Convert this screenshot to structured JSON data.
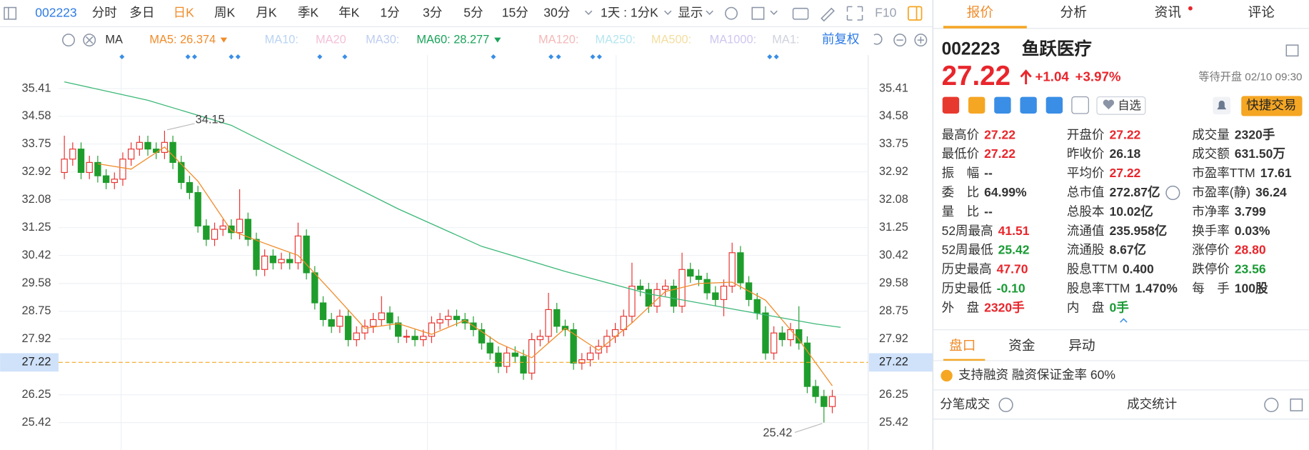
{
  "toolbar": {
    "code": "002223",
    "periods": [
      "分时",
      "多日",
      "日K",
      "周K",
      "月K",
      "季K",
      "年K",
      "1分",
      "3分",
      "5分",
      "15分",
      "30分"
    ],
    "interval": "1天 : 1分K",
    "display": "显示",
    "f10": "F10"
  },
  "ma_legend": {
    "title": "MA",
    "items": [
      "MA5: 26.374",
      "MA10:",
      "MA20",
      "MA30:",
      "MA60: 28.277",
      "MA120:",
      "MA250:",
      "MA500:",
      "MA1000:",
      "MA1:"
    ],
    "adjust": "前复权"
  },
  "chart_data": {
    "type": "candlestick",
    "open": [
      32.9,
      33.3,
      33.6,
      32.9,
      33.2,
      32.8,
      32.6,
      32.7,
      33.3,
      33.6,
      33.8,
      33.6,
      33.5,
      33.8,
      33.2,
      32.6,
      32.3,
      31.3,
      30.9,
      31.2,
      31.3,
      31.1,
      31.5,
      30.9,
      30.0,
      30.4,
      30.2,
      30.3,
      30.2,
      31.0,
      29.9,
      29.0,
      28.5,
      28.3,
      28.6,
      27.9,
      28.1,
      28.3,
      28.5,
      28.7,
      28.4,
      28.0,
      28.0,
      27.9,
      28.0,
      28.4,
      28.5,
      28.6,
      28.5,
      28.4,
      28.2,
      27.8,
      27.5,
      27.1,
      27.5,
      27.4,
      26.9,
      27.9,
      28.0,
      28.8,
      28.3,
      28.2,
      27.2,
      27.3,
      27.5,
      27.7,
      28.0,
      28.2,
      28.6,
      29.5,
      29.4,
      28.9,
      29.4,
      29.5,
      28.9,
      30.0,
      29.8,
      29.7,
      29.3,
      29.1,
      29.5,
      30.5,
      29.6,
      29.1,
      28.7,
      27.5,
      28.1,
      27.9,
      28.2,
      27.8,
      26.5,
      26.2,
      25.9
    ],
    "high": [
      34.0,
      33.8,
      33.8,
      33.4,
      33.4,
      33.0,
      32.9,
      33.5,
      33.8,
      34.0,
      34.0,
      33.8,
      34.15,
      34.0,
      33.4,
      32.8,
      32.5,
      31.5,
      31.4,
      31.5,
      31.5,
      32.4,
      31.7,
      31.1,
      30.6,
      30.6,
      30.5,
      30.5,
      31.4,
      31.2,
      30.1,
      29.2,
      28.7,
      28.8,
      28.8,
      28.3,
      28.5,
      28.7,
      29.2,
      28.9,
      28.6,
      28.2,
      28.2,
      28.2,
      28.6,
      28.7,
      28.8,
      28.8,
      28.7,
      28.6,
      28.4,
      28.0,
      27.7,
      27.7,
      27.7,
      27.6,
      28.1,
      28.2,
      29.3,
      29.0,
      28.5,
      28.4,
      27.5,
      27.7,
      27.9,
      28.2,
      28.4,
      28.8,
      30.2,
      29.7,
      29.6,
      29.6,
      29.7,
      29.7,
      30.5,
      30.2,
      30.0,
      29.9,
      29.5,
      29.7,
      30.8,
      30.7,
      29.8,
      29.3,
      28.9,
      28.3,
      28.3,
      28.4,
      28.9,
      28.0,
      26.7,
      26.4,
      26.4
    ],
    "low": [
      32.7,
      33.1,
      32.7,
      32.7,
      32.6,
      32.4,
      32.4,
      32.5,
      33.1,
      33.4,
      33.4,
      33.3,
      33.3,
      33.0,
      32.4,
      32.1,
      31.1,
      30.7,
      30.7,
      31.0,
      30.9,
      30.9,
      30.7,
      29.8,
      29.8,
      30.0,
      30.0,
      30.0,
      30.0,
      29.7,
      28.8,
      28.3,
      28.1,
      28.1,
      27.7,
      27.7,
      27.9,
      28.1,
      28.3,
      28.2,
      27.8,
      27.8,
      27.7,
      27.7,
      27.8,
      28.2,
      28.3,
      28.3,
      28.2,
      28.0,
      27.6,
      27.3,
      26.9,
      26.9,
      27.2,
      26.7,
      26.7,
      27.7,
      27.8,
      28.1,
      28.0,
      27.0,
      27.0,
      27.1,
      27.3,
      27.5,
      27.8,
      28.0,
      28.4,
      29.2,
      28.7,
      28.7,
      29.2,
      28.7,
      28.7,
      29.6,
      29.5,
      29.1,
      28.9,
      28.6,
      29.3,
      29.4,
      28.9,
      28.5,
      27.3,
      27.3,
      27.7,
      27.7,
      27.6,
      26.3,
      26.0,
      25.42,
      25.7
    ],
    "close": [
      33.3,
      33.6,
      32.9,
      33.2,
      32.8,
      32.6,
      32.7,
      33.3,
      33.6,
      33.8,
      33.6,
      33.5,
      33.8,
      33.2,
      32.6,
      32.3,
      31.3,
      30.9,
      31.2,
      31.3,
      31.1,
      31.5,
      30.9,
      30.0,
      30.4,
      30.2,
      30.3,
      30.2,
      31.0,
      29.9,
      29.0,
      28.5,
      28.3,
      28.6,
      27.9,
      28.1,
      28.3,
      28.5,
      28.7,
      28.4,
      28.0,
      28.0,
      27.9,
      28.0,
      28.4,
      28.5,
      28.6,
      28.5,
      28.4,
      28.2,
      27.8,
      27.5,
      27.1,
      27.5,
      27.4,
      26.9,
      27.9,
      28.0,
      28.8,
      28.3,
      28.2,
      27.2,
      27.3,
      27.5,
      27.7,
      28.0,
      28.2,
      28.6,
      29.5,
      29.4,
      28.9,
      29.4,
      29.5,
      28.9,
      30.0,
      29.8,
      29.7,
      29.3,
      29.1,
      29.5,
      30.5,
      29.6,
      29.1,
      28.7,
      27.5,
      28.1,
      27.9,
      28.2,
      27.8,
      26.5,
      26.2,
      25.9,
      26.2
    ],
    "up_color": "#e8312f",
    "down_color": "#1f9d2c",
    "ma_lines": [
      {
        "color": "#f08c2a",
        "x": [
          4,
          8,
          12,
          16,
          20,
          24,
          28,
          32,
          36,
          40,
          44,
          48,
          52,
          56,
          60,
          64,
          68,
          72,
          76,
          80,
          84,
          88,
          92
        ],
        "values": [
          33.16,
          33.0,
          33.66,
          32.64,
          31.16,
          30.78,
          30.42,
          29.34,
          28.24,
          28.38,
          28.06,
          28.48,
          27.8,
          27.36,
          28.24,
          27.58,
          28.4,
          29.34,
          29.58,
          29.62,
          29.08,
          27.9,
          26.52
        ]
      },
      {
        "color": "#3cb878",
        "x": [
          0,
          10,
          20,
          30,
          40,
          50,
          60,
          70,
          80,
          90,
          93
        ],
        "values": [
          35.61,
          35.06,
          34.31,
          33.06,
          31.81,
          30.69,
          29.94,
          29.27,
          28.82,
          28.37,
          28.27
        ]
      }
    ],
    "ylim": [
      24.6,
      36.56
    ],
    "yticks": [
      35.41,
      34.58,
      33.75,
      32.92,
      32.08,
      31.25,
      30.42,
      29.58,
      28.75,
      27.92,
      26.25,
      25.42
    ],
    "grid": true,
    "last_price": 27.22,
    "last_price_color": "#f5a623"
  },
  "quote_panel": {
    "tabs": [
      "报价",
      "分析",
      "资讯",
      "评论"
    ],
    "code": "002223",
    "name": "鱼跃医疗",
    "price": "27.22",
    "change": "+1.04",
    "change_pct": "+3.97%",
    "status": "等待开盘 02/10 09:30",
    "watchlist": "自选",
    "trade_button": "快捷交易",
    "stats": [
      [
        {
          "label": "最高价",
          "value": "27.22",
          "color": "#e8262c"
        },
        {
          "label": "最低价",
          "value": "27.22",
          "color": "#e8262c"
        },
        {
          "label": "振　幅",
          "value": "--"
        },
        {
          "label": "委　比",
          "value": "64.99%"
        },
        {
          "label": "量　比",
          "value": "--"
        },
        {
          "label": "52周最高",
          "value": "41.51",
          "color": "#e8262c"
        },
        {
          "label": "52周最低",
          "value": "25.42",
          "color": "#1a9a35"
        },
        {
          "label": "历史最高",
          "value": "47.70",
          "color": "#e8262c"
        },
        {
          "label": "历史最低",
          "value": "-0.10",
          "color": "#1a9a35"
        },
        {
          "label": "外　盘",
          "value": "2320手",
          "color": "#e8262c"
        }
      ],
      [
        {
          "label": "开盘价",
          "value": "27.22",
          "color": "#e8262c"
        },
        {
          "label": "昨收价",
          "value": "26.18"
        },
        {
          "label": "平均价",
          "value": "27.22",
          "color": "#e8262c"
        },
        {
          "label": "总市值",
          "value": "272.87亿"
        },
        {
          "label": "总股本",
          "value": "10.02亿"
        },
        {
          "label": "流通值",
          "value": "235.958亿"
        },
        {
          "label": "流通股",
          "value": "8.67亿"
        },
        {
          "label": "股息TTM",
          "value": "0.400"
        },
        {
          "label": "股息率TTM",
          "value": "1.470%"
        },
        {
          "label": "内　盘",
          "value": "0手",
          "color": "#1a9a35"
        }
      ],
      [
        {
          "label": "成交量",
          "value": "2320手"
        },
        {
          "label": "成交额",
          "value": "631.50万"
        },
        {
          "label": "市盈率TTM",
          "value": "17.61"
        },
        {
          "label": "市盈率(静)",
          "value": "36.24"
        },
        {
          "label": "市净率",
          "value": "3.799"
        },
        {
          "label": "换手率",
          "value": "0.03%"
        },
        {
          "label": "涨停价",
          "value": "28.80",
          "color": "#e8262c"
        },
        {
          "label": "跌停价",
          "value": "23.56",
          "color": "#1a9a35"
        },
        {
          "label": "每　手",
          "value": "100股"
        }
      ]
    ],
    "sub_tabs": [
      "盘口",
      "资金",
      "异动"
    ],
    "margin_note": "支持融资 融资保证金率 60%",
    "trades_title": "分笔成交",
    "trades_stats": "成交统计"
  }
}
